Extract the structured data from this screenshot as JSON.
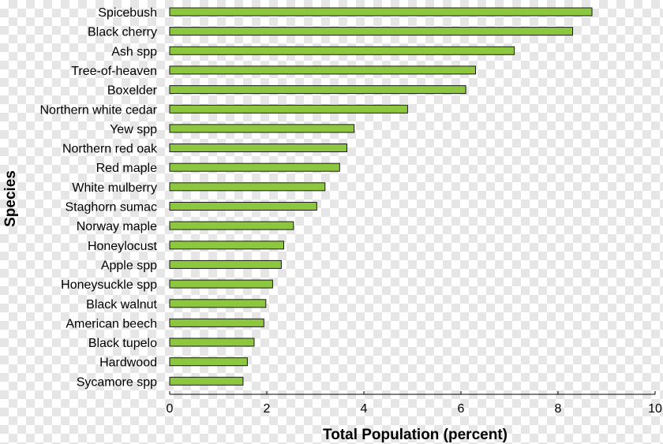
{
  "chart_data": {
    "type": "bar",
    "orientation": "horizontal",
    "categories": [
      "Spicebush",
      "Black cherry",
      "Ash spp",
      "Tree-of-heaven",
      "Boxelder",
      "Northern white cedar",
      "Yew spp",
      "Northern red oak",
      "Red maple",
      "White mulberry",
      "Staghorn sumac",
      "Norway maple",
      "Honeylocust",
      "Apple spp",
      "Honeysuckle spp",
      "Black walnut",
      "American beech",
      "Black tupelo",
      "Hardwood",
      "Sycamore spp"
    ],
    "values": [
      8.7,
      8.3,
      7.1,
      6.3,
      6.1,
      4.9,
      3.8,
      3.65,
      3.5,
      3.2,
      3.03,
      2.55,
      2.35,
      2.3,
      2.12,
      1.98,
      1.94,
      1.74,
      1.6,
      1.51
    ],
    "title": "",
    "xlabel": "Total Population (percent)",
    "ylabel": "Species",
    "xlim": [
      0,
      10
    ],
    "xticks": [
      "0",
      "2",
      "4",
      "6",
      "8",
      "10"
    ],
    "grid": false,
    "legend": "none",
    "bar_color": "#8dc63f",
    "bar_edge_color": "#1a1a1a"
  }
}
